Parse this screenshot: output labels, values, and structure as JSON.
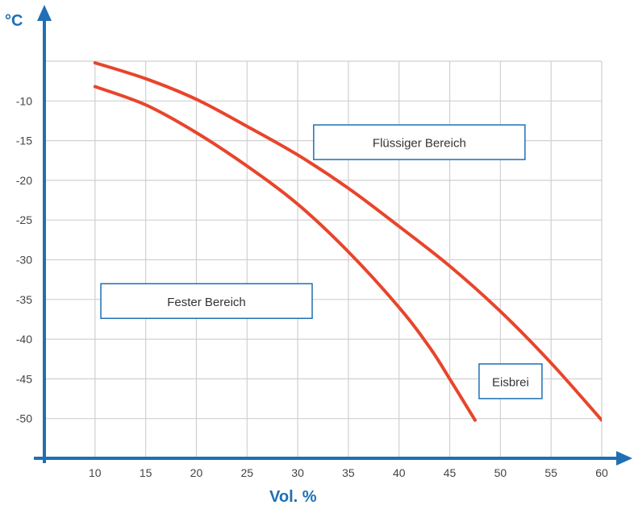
{
  "chart_data": {
    "type": "line",
    "xlabel": "Vol. %",
    "ylabel": "°C",
    "xlim": [
      5,
      60
    ],
    "ylim": [
      -55,
      -5
    ],
    "x_ticks": [
      10,
      15,
      20,
      25,
      30,
      35,
      40,
      45,
      50,
      55,
      60
    ],
    "y_ticks": [
      -10,
      -15,
      -20,
      -25,
      -30,
      -35,
      -40,
      -45,
      -50
    ],
    "grid": true,
    "line_color": "#e8452c",
    "axis_color": "#1f6fb5",
    "grid_color": "#d0d0d0",
    "series": [
      {
        "x": [
          10,
          15,
          20,
          25,
          30,
          35,
          40,
          45,
          50,
          55,
          60
        ],
        "y": [
          -5.2,
          -7.2,
          -9.8,
          -13.2,
          -16.8,
          -21,
          -25.8,
          -30.8,
          -36.5,
          -43,
          -50.2
        ]
      },
      {
        "x": [
          10,
          15,
          20,
          25,
          30,
          35,
          40,
          43,
          45,
          47.5
        ],
        "y": [
          -8.2,
          -10.5,
          -14,
          -18.2,
          -23,
          -29,
          -36,
          -41,
          -45,
          -50.2
        ]
      }
    ],
    "annotations": [
      {
        "text": "Flüssiger Bereich",
        "x": 42,
        "y": -15.2
      },
      {
        "text": "Fester Bereich",
        "x": 21,
        "y": -35.2
      },
      {
        "text": "Eisbrei",
        "x": 51,
        "y": -45.3
      }
    ]
  }
}
